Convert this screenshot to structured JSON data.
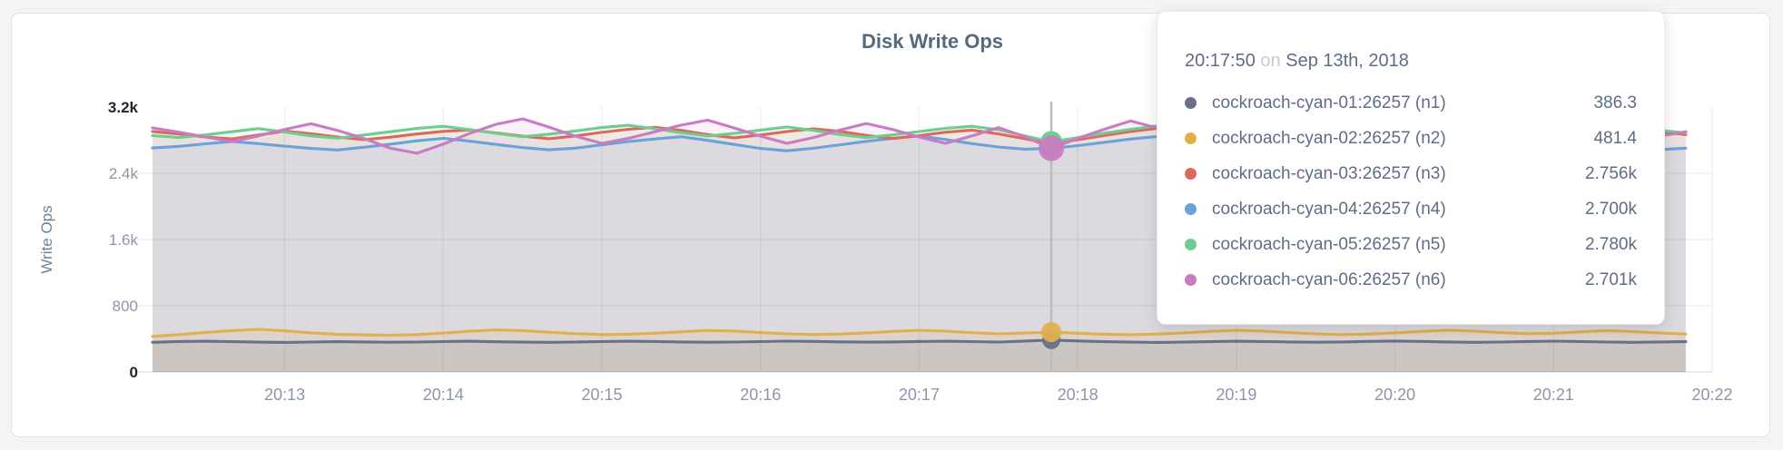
{
  "page": {
    "background": "#f4f4f6"
  },
  "tooltip": {
    "time": "20:17:50",
    "preposition": "on",
    "date": "Sep 13th, 2018",
    "rows": [
      {
        "label": "cockroach-cyan-01:26257 (n1)",
        "value": "386.3",
        "color": "#68708b"
      },
      {
        "label": "cockroach-cyan-02:26257 (n2)",
        "value": "481.4",
        "color": "#e5b042"
      },
      {
        "label": "cockroach-cyan-03:26257 (n3)",
        "value": "2.756k",
        "color": "#df675d"
      },
      {
        "label": "cockroach-cyan-04:26257 (n4)",
        "value": "2.700k",
        "color": "#6ba2d9"
      },
      {
        "label": "cockroach-cyan-05:26257 (n5)",
        "value": "2.780k",
        "color": "#6fcd8f"
      },
      {
        "label": "cockroach-cyan-06:26257 (n6)",
        "value": "2.701k",
        "color": "#c97cc3"
      }
    ]
  },
  "chart_data": {
    "type": "area",
    "title": "Disk Write Ops",
    "ylabel": "Write Ops",
    "ylim": [
      0,
      3200
    ],
    "y_ticks": [
      "0",
      "800",
      "1.6k",
      "2.4k",
      "3.2k"
    ],
    "y_tick_values": [
      0,
      800,
      1600,
      2400,
      3200
    ],
    "x_ticks": [
      "20:13",
      "20:14",
      "20:15",
      "20:16",
      "20:17",
      "20:18",
      "20:19",
      "20:20",
      "20:21",
      "20:22"
    ],
    "x_start": "20:12:10",
    "x_step_seconds": 10,
    "grid": true,
    "legend": "tooltip-overlay",
    "hover": {
      "time": "20:17:50",
      "index": 34
    },
    "series": [
      {
        "name": "cockroach-cyan-01:26257 (n1)",
        "color": "#68708b",
        "values": [
          358,
          368,
          372,
          366,
          360,
          357,
          362,
          366,
          363,
          359,
          362,
          367,
          371,
          365,
          361,
          358,
          362,
          367,
          372,
          368,
          363,
          359,
          362,
          367,
          373,
          369,
          364,
          360,
          363,
          368,
          372,
          367,
          362,
          374,
          386.3,
          375,
          366,
          360,
          357,
          361,
          366,
          371,
          368,
          363,
          359,
          363,
          369,
          374,
          369,
          363,
          358,
          362,
          368,
          373,
          368,
          362,
          358,
          363,
          366
        ]
      },
      {
        "name": "cockroach-cyan-02:26257 (n2)",
        "color": "#e0b04f",
        "values": [
          430,
          452,
          478,
          500,
          515,
          498,
          472,
          455,
          448,
          444,
          452,
          470,
          492,
          508,
          500,
          480,
          462,
          452,
          456,
          468,
          486,
          502,
          494,
          476,
          460,
          452,
          458,
          472,
          490,
          503,
          492,
          474,
          460,
          470,
          481.4,
          468,
          456,
          450,
          458,
          472,
          490,
          504,
          494,
          476,
          460,
          452,
          458,
          472,
          490,
          505,
          494,
          476,
          462,
          468,
          484,
          500,
          488,
          470,
          458
        ]
      },
      {
        "name": "cockroach-cyan-03:26257 (n3)",
        "color": "#df675d",
        "values": [
          2905,
          2875,
          2840,
          2815,
          2862,
          2908,
          2878,
          2838,
          2805,
          2836,
          2874,
          2906,
          2924,
          2888,
          2848,
          2818,
          2852,
          2894,
          2932,
          2956,
          2918,
          2868,
          2828,
          2862,
          2904,
          2938,
          2906,
          2858,
          2820,
          2854,
          2896,
          2922,
          2876,
          2818,
          2756,
          2806,
          2856,
          2904,
          2942,
          2902,
          2848,
          2810,
          2844,
          2886,
          2924,
          2948,
          2908,
          2858,
          2822,
          2856,
          2896,
          2934,
          2958,
          2916,
          2866,
          2830,
          2864,
          2902,
          2868
        ]
      },
      {
        "name": "cockroach-cyan-04:26257 (n4)",
        "color": "#6ba2d9",
        "values": [
          2706,
          2726,
          2756,
          2784,
          2758,
          2728,
          2700,
          2682,
          2714,
          2752,
          2792,
          2822,
          2788,
          2748,
          2710,
          2684,
          2704,
          2744,
          2784,
          2814,
          2842,
          2798,
          2748,
          2700,
          2672,
          2702,
          2744,
          2786,
          2822,
          2852,
          2808,
          2758,
          2718,
          2692,
          2700,
          2734,
          2774,
          2814,
          2844,
          2798,
          2748,
          2702,
          2666,
          2696,
          2736,
          2776,
          2812,
          2778,
          2738,
          2702,
          2674,
          2704,
          2746,
          2786,
          2812,
          2768,
          2722,
          2686,
          2704
        ]
      },
      {
        "name": "cockroach-cyan-05:26257 (n5)",
        "color": "#6fcd8f",
        "values": [
          2855,
          2832,
          2864,
          2902,
          2940,
          2898,
          2852,
          2824,
          2862,
          2902,
          2942,
          2968,
          2928,
          2882,
          2842,
          2872,
          2912,
          2952,
          2980,
          2938,
          2890,
          2850,
          2882,
          2922,
          2960,
          2918,
          2868,
          2832,
          2864,
          2904,
          2944,
          2968,
          2926,
          2852,
          2780,
          2832,
          2884,
          2932,
          2972,
          2998,
          2948,
          2898,
          2858,
          2892,
          2930,
          2962,
          2920,
          2872,
          2840,
          2880,
          2922,
          2960,
          2988,
          2940,
          2890,
          2852,
          2884,
          2920,
          2888
        ]
      },
      {
        "name": "cockroach-cyan-06:26257 (n6)",
        "color": "#c97cc3",
        "values": [
          2948,
          2896,
          2838,
          2782,
          2852,
          2930,
          2998,
          2918,
          2820,
          2702,
          2642,
          2752,
          2882,
          2992,
          3058,
          2958,
          2848,
          2762,
          2822,
          2902,
          2982,
          3042,
          2948,
          2848,
          2762,
          2832,
          2922,
          3002,
          2928,
          2838,
          2762,
          2852,
          2952,
          2842,
          2701,
          2822,
          2932,
          3032,
          2948,
          2848,
          2772,
          2852,
          2942,
          3022,
          2938,
          2838,
          2762,
          2842,
          2932,
          3012,
          2928,
          2838,
          2772,
          2852,
          2942,
          3022,
          2938,
          2848,
          2902
        ]
      }
    ]
  }
}
